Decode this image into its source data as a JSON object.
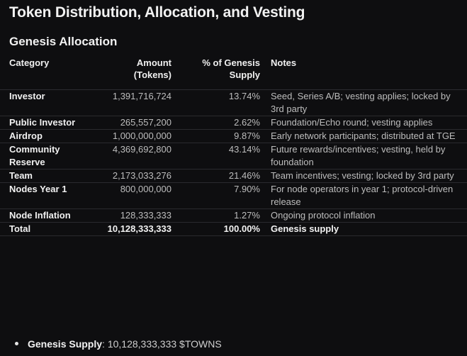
{
  "title": "Token Distribution, Allocation, and Vesting",
  "subtitle": "Genesis Allocation",
  "table": {
    "headers": {
      "category": "Category",
      "amount_line1": "Amount",
      "amount_line2": "(Tokens)",
      "pct_line1": "% of Genesis",
      "pct_line2": "Supply",
      "notes": "Notes"
    },
    "rows": [
      {
        "category": "Investor",
        "amount": "1,391,716,724",
        "pct": "13.74%",
        "notes": "Seed, Series A/B; vesting applies; locked by 3rd party"
      },
      {
        "category": "Public Investor",
        "amount": "265,557,200",
        "pct": "2.62%",
        "notes": "Foundation/Echo round; vesting applies"
      },
      {
        "category": "Airdrop",
        "amount": "1,000,000,000",
        "pct": "9.87%",
        "notes": "Early network participants; distributed at TGE"
      },
      {
        "category": "Community Reserve",
        "amount": "4,369,692,800",
        "pct": "43.14%",
        "notes": "Future rewards/incentives; vesting, held by foundation"
      },
      {
        "category": "Team",
        "amount": "2,173,033,276",
        "pct": "21.46%",
        "notes": "Team incentives; vesting; locked by 3rd party"
      },
      {
        "category": "Nodes Year 1",
        "amount": "800,000,000",
        "pct": "7.90%",
        "notes": "For node operators in year 1; protocol-driven release"
      },
      {
        "category": "Node Inflation",
        "amount": "128,333,333",
        "pct": "1.27%",
        "notes": "Ongoing protocol inflation"
      }
    ],
    "total": {
      "category": "Total",
      "amount": "10,128,333,333",
      "pct": "100.00%",
      "notes": "Genesis supply"
    }
  },
  "bullet": {
    "label": "Genesis Supply",
    "value": ": 10,128,333,333 $TOWNS"
  }
}
